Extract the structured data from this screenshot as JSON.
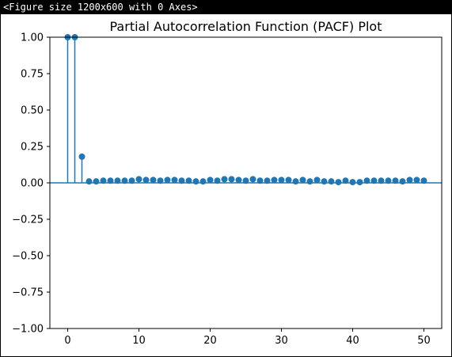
{
  "console": {
    "text": "<Figure size 1200x600 with 0 Axes>"
  },
  "colors": {
    "series": "#1f77b4",
    "background": "#ffffff",
    "frame": "#000000"
  },
  "chart_data": {
    "type": "stem",
    "title": "Partial Autocorrelation Function (PACF) Plot",
    "xlabel": "",
    "ylabel": "",
    "xlim": [
      -2.5,
      52.5
    ],
    "ylim": [
      -1.0,
      1.0
    ],
    "xticks": [
      0,
      10,
      20,
      30,
      40,
      50
    ],
    "yticks": [
      -1.0,
      -0.75,
      -0.5,
      -0.25,
      0.0,
      0.25,
      0.5,
      0.75,
      1.0
    ],
    "ytick_labels": [
      "−1.00",
      "−0.75",
      "−0.50",
      "−0.25",
      "0.00",
      "0.25",
      "0.50",
      "0.75",
      "1.00"
    ],
    "xtick_labels": [
      "0",
      "10",
      "20",
      "30",
      "40",
      "50"
    ],
    "grid": false,
    "baseline": 0.0,
    "x": [
      0,
      1,
      2,
      3,
      4,
      5,
      6,
      7,
      8,
      9,
      10,
      11,
      12,
      13,
      14,
      15,
      16,
      17,
      18,
      19,
      20,
      21,
      22,
      23,
      24,
      25,
      26,
      27,
      28,
      29,
      30,
      31,
      32,
      33,
      34,
      35,
      36,
      37,
      38,
      39,
      40,
      41,
      42,
      43,
      44,
      45,
      46,
      47,
      48,
      49,
      50
    ],
    "values": [
      1.0,
      1.0,
      0.18,
      0.01,
      0.01,
      0.015,
      0.015,
      0.015,
      0.015,
      0.015,
      0.025,
      0.02,
      0.02,
      0.015,
      0.02,
      0.02,
      0.015,
      0.015,
      0.01,
      0.01,
      0.02,
      0.015,
      0.025,
      0.025,
      0.02,
      0.015,
      0.025,
      0.015,
      0.015,
      0.02,
      0.02,
      0.02,
      0.01,
      0.02,
      0.01,
      0.02,
      0.01,
      0.01,
      0.005,
      0.015,
      0.005,
      0.005,
      0.015,
      0.015,
      0.015,
      0.015,
      0.015,
      0.01,
      0.02,
      0.02,
      0.015
    ]
  }
}
